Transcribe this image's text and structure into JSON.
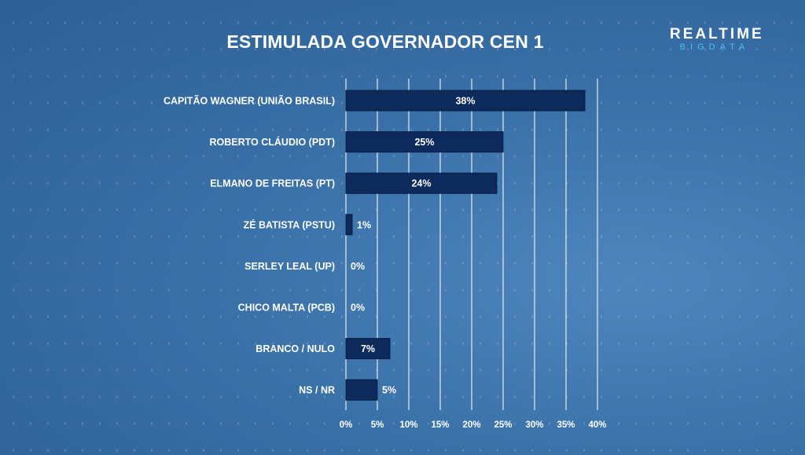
{
  "title": "ESTIMULADA GOVERNADOR CEN 1",
  "logo": {
    "line1": "REALTIME",
    "line2": "BIGDATA"
  },
  "colors": {
    "bar": "#0d2a5c",
    "grid": "#ffffff",
    "text": "#ffffff",
    "logo_accent": "#4fc0ec"
  },
  "chart_data": {
    "type": "bar",
    "orientation": "horizontal",
    "title": "ESTIMULADA GOVERNADOR CEN 1",
    "categories": [
      "CAPITÃO WAGNER (UNIÃO BRASIL)",
      "ROBERTO CLÁUDIO (PDT)",
      "ELMANO DE FREITAS (PT)",
      "ZÉ BATISTA (PSTU)",
      "SERLEY LEAL (UP)",
      "CHICO MALTA (PCB)",
      "BRANCO / NULO",
      "NS / NR"
    ],
    "values": [
      38,
      25,
      24,
      1,
      0,
      0,
      7,
      5
    ],
    "value_labels": [
      "38%",
      "25%",
      "24%",
      "1%",
      "0%",
      "0%",
      "7%",
      "5%"
    ],
    "xlim": [
      0,
      40
    ],
    "xticks": [
      0,
      5,
      10,
      15,
      20,
      25,
      30,
      35,
      40
    ],
    "xtick_labels": [
      "0%",
      "5%",
      "10%",
      "15%",
      "20%",
      "25%",
      "30%",
      "35%",
      "40%"
    ],
    "grid": true,
    "legend": "none"
  }
}
